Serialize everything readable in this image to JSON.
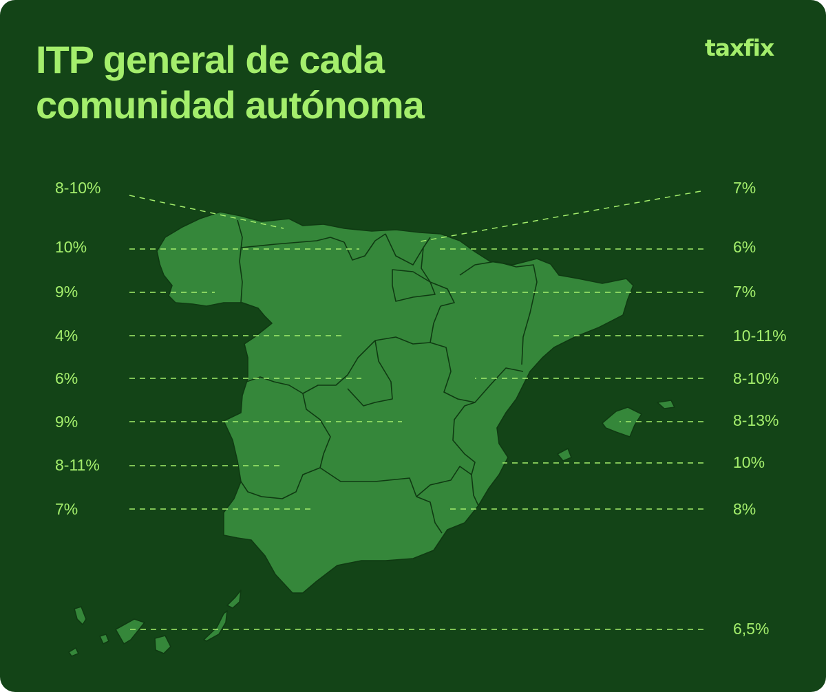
{
  "title_lines": [
    "ITP general de cada",
    "comunidad autónoma"
  ],
  "brand": "taxfix",
  "colors": {
    "background": "#134417",
    "land": "#35873a",
    "accent": "#a4ee6c"
  },
  "left_labels": [
    "8-10%",
    "10%",
    "9%",
    "4%",
    "6%",
    "9%",
    "8-11%",
    "7%"
  ],
  "right_labels": [
    "7%",
    "6%",
    "7%",
    "10-11%",
    "8-10%",
    "8-13%",
    "10%",
    "8%",
    "6,5%"
  ]
}
